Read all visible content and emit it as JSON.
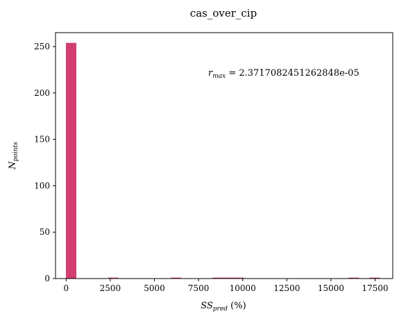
{
  "chart_data": {
    "type": "bar",
    "title": "cas_over_cip",
    "xlabel_main": "SS",
    "xlabel_sub": "pred",
    "xlabel_suffix": " (%)",
    "ylabel_main": "N",
    "ylabel_sub": "points",
    "annotation_main": "r",
    "annotation_sub": "max",
    "annotation_suffix": " = 2.3717082451262848e-05",
    "xlim": [
      -600,
      18500
    ],
    "ylim": [
      0,
      265
    ],
    "xticks": [
      "0",
      "2500",
      "5000",
      "7500",
      "10000",
      "12500",
      "15000",
      "17500"
    ],
    "xtick_values": [
      0,
      2500,
      5000,
      7500,
      10000,
      12500,
      15000,
      17500
    ],
    "yticks": [
      "0",
      "50",
      "100",
      "150",
      "200",
      "250"
    ],
    "ytick_values": [
      0,
      50,
      100,
      150,
      200,
      250
    ],
    "bin_width": 590,
    "bins": [
      {
        "x0": -10,
        "count": 254
      },
      {
        "x0": 2370,
        "count": 1
      },
      {
        "x0": 5930,
        "count": 1
      },
      {
        "x0": 8300,
        "count": 1
      },
      {
        "x0": 8890,
        "count": 1
      },
      {
        "x0": 9480,
        "count": 1
      },
      {
        "x0": 16000,
        "count": 1
      },
      {
        "x0": 17180,
        "count": 1
      }
    ],
    "bar_color": "#d33f6f",
    "grid": false
  }
}
